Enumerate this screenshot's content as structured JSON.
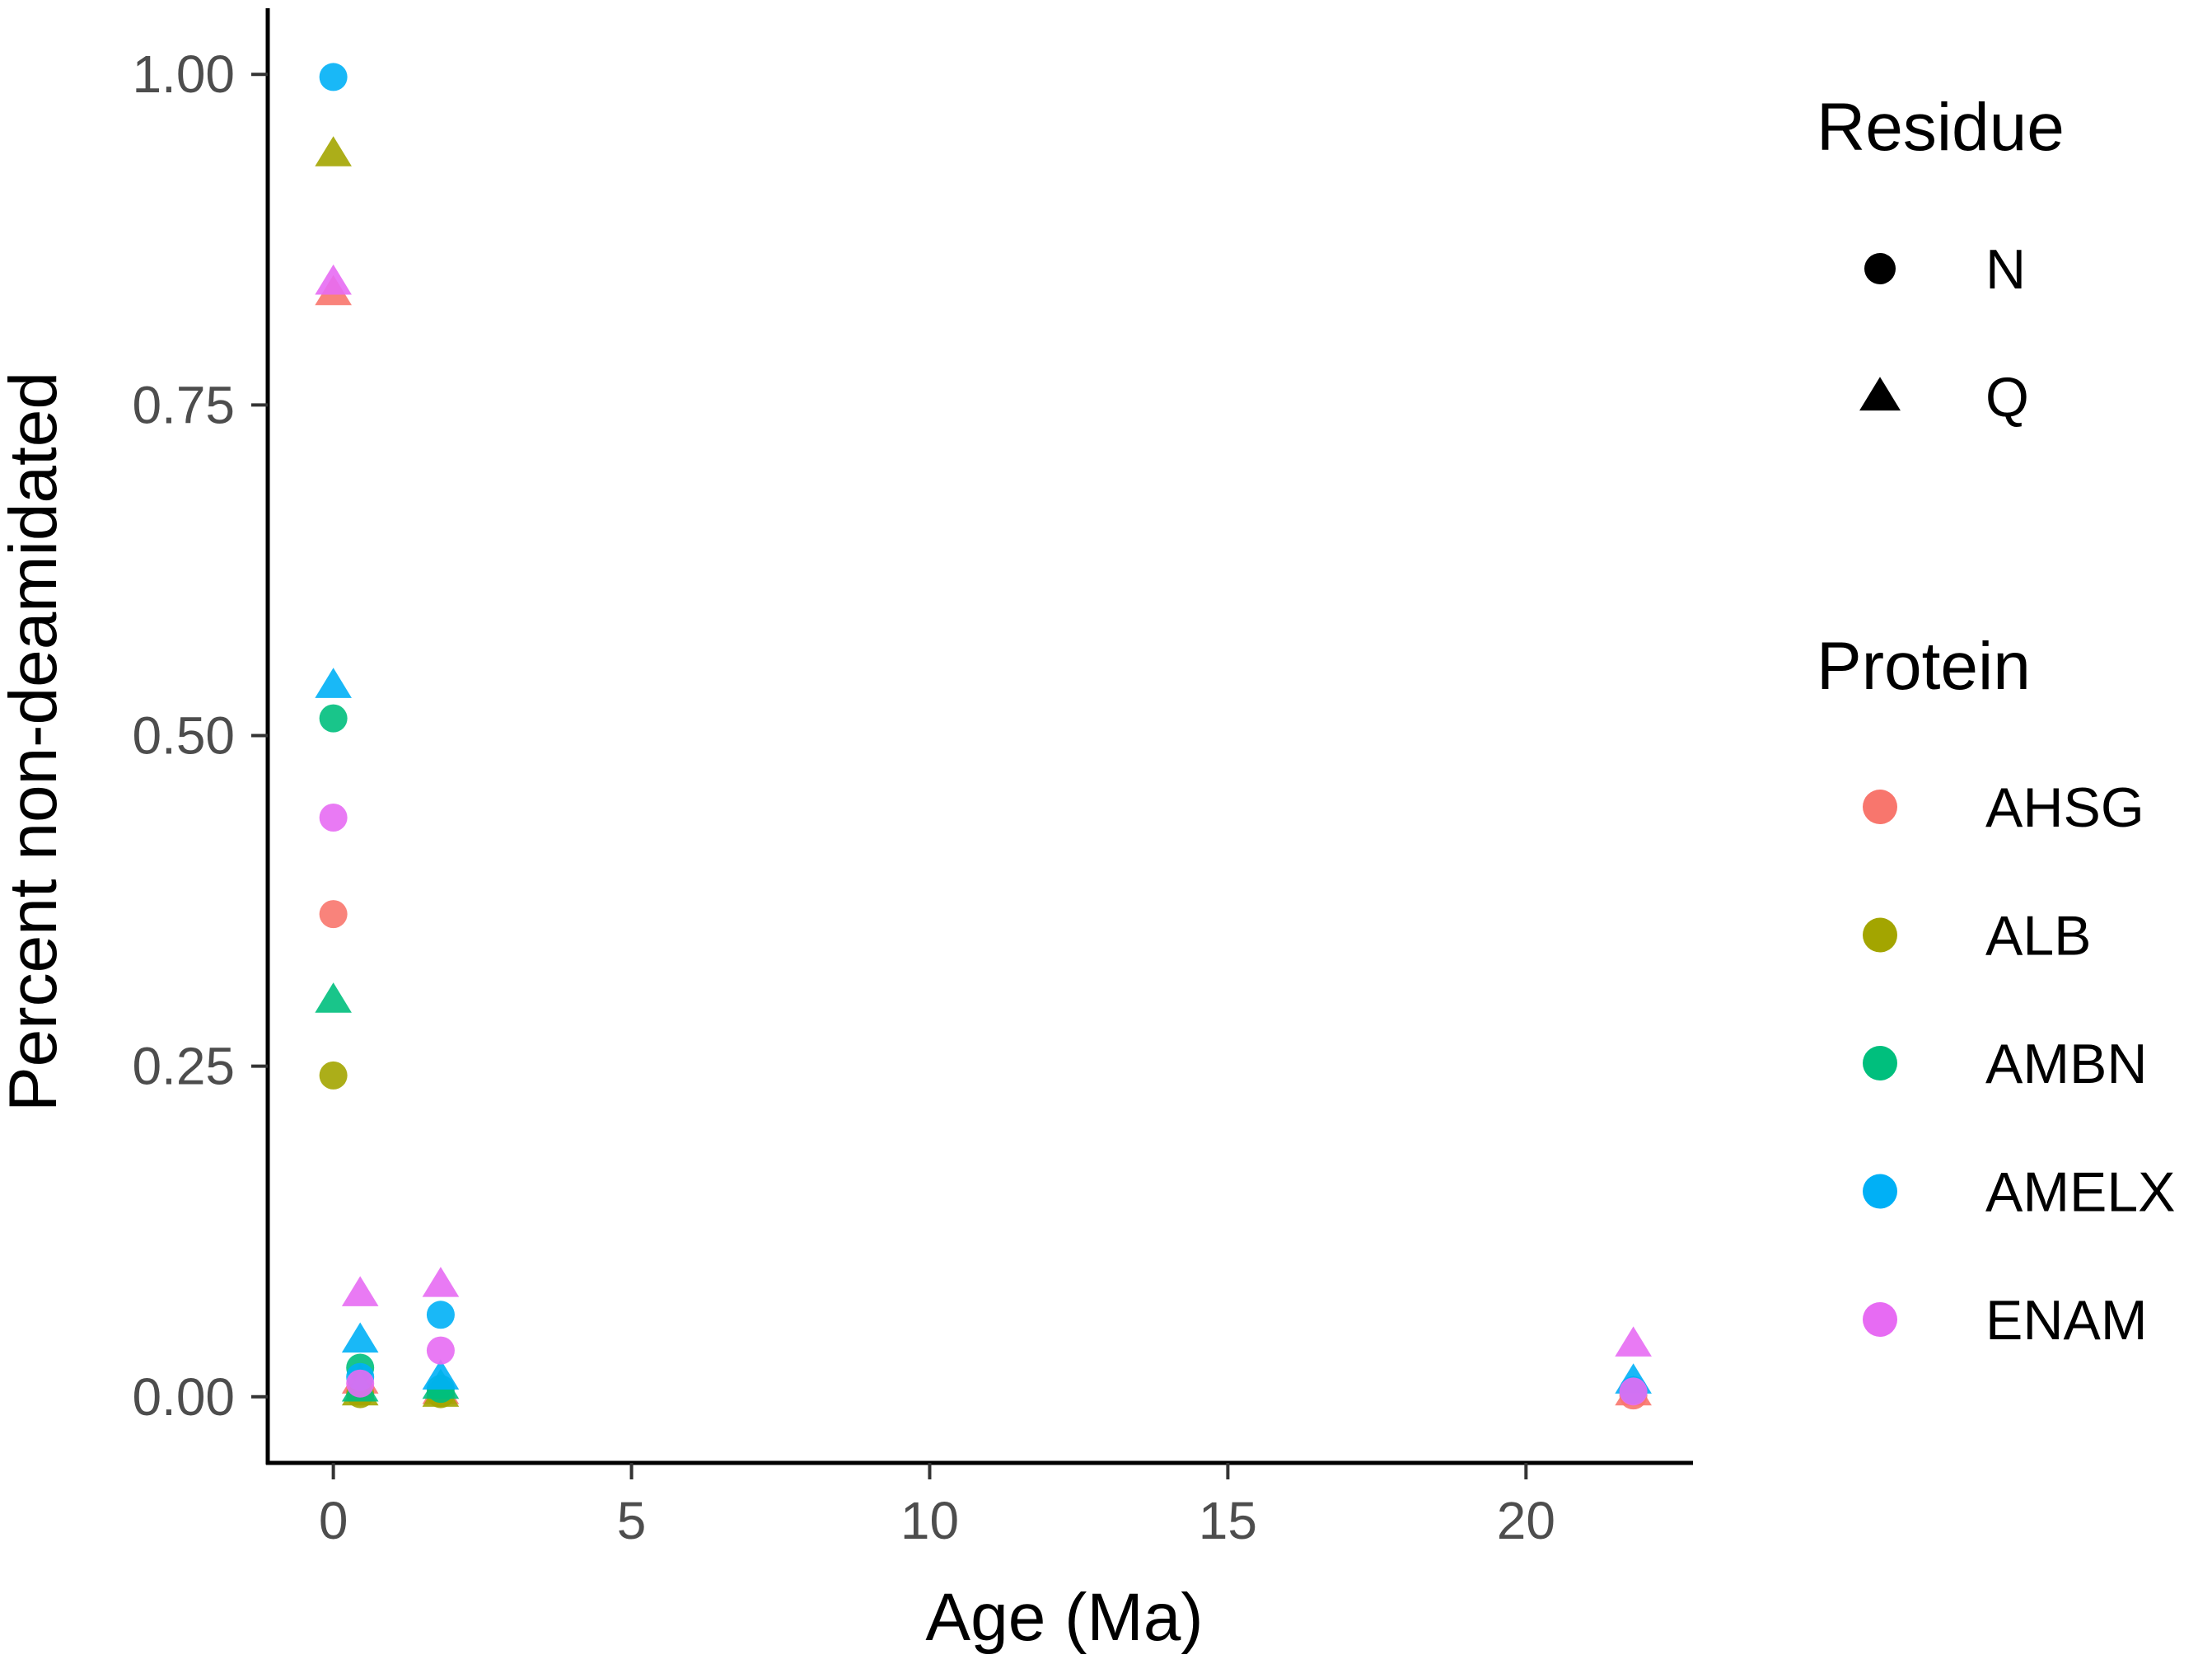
{
  "chart_data": {
    "type": "scatter",
    "title": "",
    "xlabel": "Age (Ma)",
    "ylabel": "Percent non-deamidated",
    "xlim": [
      -1.1,
      22.8
    ],
    "ylim": [
      -0.05,
      1.05
    ],
    "x_ticks": [
      0,
      5,
      10,
      15,
      20
    ],
    "x_tick_labels": [
      "0",
      "5",
      "10",
      "15",
      "20"
    ],
    "y_ticks": [
      0,
      0.25,
      0.5,
      0.75,
      1
    ],
    "y_tick_labels": [
      "0.00",
      "0.25",
      "0.50",
      "0.75",
      "1.00"
    ],
    "grid": false,
    "legend_position": "right",
    "legends": {
      "shape": {
        "title": "Residue",
        "items": [
          {
            "label": "N",
            "shape": "circle"
          },
          {
            "label": "Q",
            "shape": "triangle"
          }
        ]
      },
      "color": {
        "title": "Protein",
        "items": [
          {
            "label": "AHSG",
            "color": "#F8766D"
          },
          {
            "label": "ALB",
            "color": "#A3A500"
          },
          {
            "label": "AMBN",
            "color": "#00BF7D"
          },
          {
            "label": "AMELX",
            "color": "#00B0F6"
          },
          {
            "label": "ENAM",
            "color": "#E76BF3"
          }
        ]
      }
    },
    "series": [
      {
        "protein": "AHSG",
        "residue": "N",
        "points": [
          {
            "x": 0,
            "y": 0.365
          },
          {
            "x": 0.45,
            "y": 0.005
          },
          {
            "x": 1.8,
            "y": 0.003
          },
          {
            "x": 21.8,
            "y": 0.001
          }
        ]
      },
      {
        "protein": "AHSG",
        "residue": "Q",
        "points": [
          {
            "x": 0,
            "y": 0.835
          },
          {
            "x": 0.45,
            "y": 0.012
          },
          {
            "x": 1.8,
            "y": 0.004
          },
          {
            "x": 21.8,
            "y": 0.003
          }
        ]
      },
      {
        "protein": "ALB",
        "residue": "N",
        "points": [
          {
            "x": 0,
            "y": 0.243
          },
          {
            "x": 0.45,
            "y": 0.002
          },
          {
            "x": 1.8,
            "y": 0.002
          }
        ]
      },
      {
        "protein": "ALB",
        "residue": "Q",
        "points": [
          {
            "x": 0,
            "y": 0.94
          },
          {
            "x": 0.45,
            "y": 0.003
          },
          {
            "x": 1.8,
            "y": 0.002
          }
        ]
      },
      {
        "protein": "AMBN",
        "residue": "N",
        "points": [
          {
            "x": 0,
            "y": 0.513
          },
          {
            "x": 0.45,
            "y": 0.022
          },
          {
            "x": 1.8,
            "y": 0.006
          }
        ]
      },
      {
        "protein": "AMBN",
        "residue": "Q",
        "points": [
          {
            "x": 0,
            "y": 0.3
          },
          {
            "x": 0.45,
            "y": 0.006
          },
          {
            "x": 1.8,
            "y": 0.008
          }
        ]
      },
      {
        "protein": "AMELX",
        "residue": "N",
        "points": [
          {
            "x": 0,
            "y": 0.998
          },
          {
            "x": 0.45,
            "y": 0.015
          },
          {
            "x": 1.8,
            "y": 0.062
          },
          {
            "x": 21.8,
            "y": 0.005
          }
        ]
      },
      {
        "protein": "AMELX",
        "residue": "Q",
        "points": [
          {
            "x": 0,
            "y": 0.538
          },
          {
            "x": 0.45,
            "y": 0.043
          },
          {
            "x": 1.8,
            "y": 0.015
          },
          {
            "x": 21.8,
            "y": 0.012
          }
        ]
      },
      {
        "protein": "ENAM",
        "residue": "N",
        "points": [
          {
            "x": 0,
            "y": 0.438
          },
          {
            "x": 0.45,
            "y": 0.01
          },
          {
            "x": 1.8,
            "y": 0.035
          },
          {
            "x": 21.8,
            "y": 0.004
          }
        ]
      },
      {
        "protein": "ENAM",
        "residue": "Q",
        "points": [
          {
            "x": 0,
            "y": 0.843
          },
          {
            "x": 0.45,
            "y": 0.078
          },
          {
            "x": 1.8,
            "y": 0.085
          },
          {
            "x": 21.8,
            "y": 0.04
          }
        ]
      }
    ]
  }
}
